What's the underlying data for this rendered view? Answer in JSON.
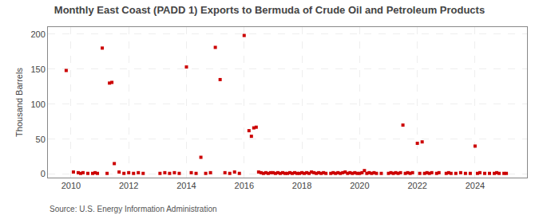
{
  "chart_data": {
    "type": "scatter",
    "title": "Monthly East Coast (PADD 1) Exports to Bermuda of Crude Oil and Petroleum Products",
    "ylabel": "Thousand Barrels",
    "annotations": [
      "Source: U.S. Energy Information Administration"
    ],
    "color": "#cc0000",
    "marker": "square",
    "grid": true,
    "xlim": [
      2009.2,
      2025.8
    ],
    "xticks": [
      2010,
      2012,
      2014,
      2016,
      2018,
      2020,
      2022,
      2024
    ],
    "ylim": [
      -5,
      210
    ],
    "yticks": [
      0,
      50,
      100,
      150,
      200
    ],
    "x": [
      2009.833333333333,
      2010.083333333333,
      2010.25,
      2010.333333333333,
      2010.416666666667,
      2010.583333333333,
      2010.75,
      2010.833333333333,
      2010.916666666667,
      2011.083333333333,
      2011.25,
      2011.333333333333,
      2011.416666666667,
      2011.5,
      2011.666666666667,
      2011.833333333333,
      2012,
      2012.166666666667,
      2012.333333333333,
      2012.5,
      2013.083333333333,
      2013.25,
      2013.416666666667,
      2013.583333333333,
      2013.75,
      2014,
      2014.166666666667,
      2014.333333333333,
      2014.5,
      2014.666666666667,
      2014.833333333333,
      2015,
      2015.166666666667,
      2015.333333333333,
      2015.5,
      2015.666666666667,
      2015.833333333333,
      2016,
      2016.166666666667,
      2016.25,
      2016.333333333333,
      2016.416666666667,
      2016.5,
      2016.583333333333,
      2016.666666666667,
      2016.75,
      2016.833333333333,
      2016.916666666667,
      2017,
      2017.083333333333,
      2017.166666666667,
      2017.25,
      2017.333333333333,
      2017.416666666667,
      2017.5,
      2017.583333333333,
      2017.666666666667,
      2017.75,
      2017.833333333333,
      2017.916666666667,
      2018,
      2018.083333333333,
      2018.166666666667,
      2018.25,
      2018.333333333333,
      2018.416666666667,
      2018.5,
      2018.583333333333,
      2018.666666666667,
      2018.75,
      2018.833333333333,
      2019,
      2019.083333333333,
      2019.166666666667,
      2019.25,
      2019.333333333333,
      2019.416666666667,
      2019.5,
      2019.583333333333,
      2019.666666666667,
      2019.75,
      2019.833333333333,
      2019.916666666667,
      2020,
      2020.083333333333,
      2020.166666666667,
      2020.25,
      2020.333333333333,
      2020.416666666667,
      2020.5,
      2020.583333333333,
      2020.75,
      2021,
      2021.083333333333,
      2021.166666666667,
      2021.25,
      2021.333333333333,
      2021.416666666667,
      2021.5,
      2021.583333333333,
      2021.666666666667,
      2021.75,
      2021.833333333333,
      2022,
      2022.083333333333,
      2022.166666666667,
      2022.25,
      2022.333333333333,
      2022.416666666667,
      2022.5,
      2022.666666666667,
      2022.75,
      2023,
      2023.083333333333,
      2023.166666666667,
      2023.333333333333,
      2023.5,
      2023.666666666667,
      2023.833333333333,
      2024,
      2024.083333333333,
      2024.166666666667,
      2024.333333333333,
      2024.5,
      2024.666666666667,
      2024.75,
      2024.833333333333,
      2025,
      2025.083333333333
    ],
    "values": [
      148,
      3,
      2,
      1,
      2,
      1,
      1,
      2,
      1,
      180,
      1,
      130,
      131,
      15,
      3,
      1,
      2,
      1,
      2,
      1,
      1,
      2,
      1,
      2,
      1,
      153,
      2,
      1,
      24,
      1,
      2,
      181,
      135,
      2,
      1,
      3,
      1,
      198,
      62,
      54,
      66,
      67,
      3,
      2,
      1,
      2,
      1,
      2,
      2,
      1,
      2,
      1,
      2,
      1,
      1,
      2,
      1,
      2,
      1,
      1,
      2,
      1,
      2,
      1,
      3,
      2,
      1,
      2,
      1,
      2,
      1,
      1,
      2,
      1,
      2,
      1,
      2,
      3,
      1,
      2,
      1,
      2,
      1,
      1,
      2,
      5,
      1,
      2,
      1,
      2,
      1,
      1,
      1,
      2,
      1,
      2,
      1,
      2,
      70,
      1,
      2,
      1,
      2,
      44,
      1,
      46,
      1,
      2,
      1,
      2,
      1,
      2,
      1,
      2,
      1,
      1,
      2,
      1,
      1,
      40,
      1,
      2,
      1,
      1,
      1,
      2,
      1,
      1,
      1
    ]
  }
}
